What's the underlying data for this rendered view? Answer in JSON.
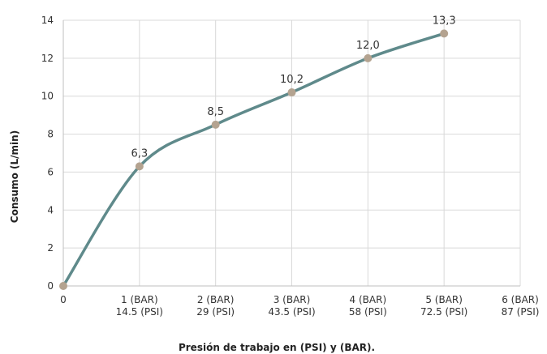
{
  "chart_data": {
    "type": "line",
    "title": "",
    "xlabel": "Presión de trabajo en (PSI) y (BAR).",
    "ylabel": "Consumo (L/min)",
    "ylim": [
      0,
      14
    ],
    "xlim": [
      0,
      6
    ],
    "y_ticks": [
      "0",
      "2",
      "4",
      "6",
      "8",
      "10",
      "12",
      "14"
    ],
    "x_ticks": [
      {
        "line1": "0",
        "line2": ""
      },
      {
        "line1": "1 (BAR)",
        "line2": "14.5 (PSI)"
      },
      {
        "line1": "2 (BAR)",
        "line2": "29 (PSI)"
      },
      {
        "line1": "3 (BAR)",
        "line2": "43.5 (PSI)"
      },
      {
        "line1": "4 (BAR)",
        "line2": "58 (PSI)"
      },
      {
        "line1": "5 (BAR)",
        "line2": "72.5 (PSI)"
      },
      {
        "line1": "6 (BAR)",
        "line2": "87 (PSI)"
      }
    ],
    "series": [
      {
        "x": [
          0,
          1,
          2,
          3,
          4,
          5
        ],
        "y": [
          0,
          6.3,
          8.5,
          10.2,
          12.0,
          13.3
        ],
        "labels": [
          "",
          "6,3",
          "8,5",
          "10,2",
          "12,0",
          "13,3"
        ]
      }
    ],
    "grid": true,
    "line_color": "#5f8a8b",
    "marker_color": "#b4a390",
    "grid_color": "#d9d9d9",
    "axis_color": "#bfbfbf"
  }
}
